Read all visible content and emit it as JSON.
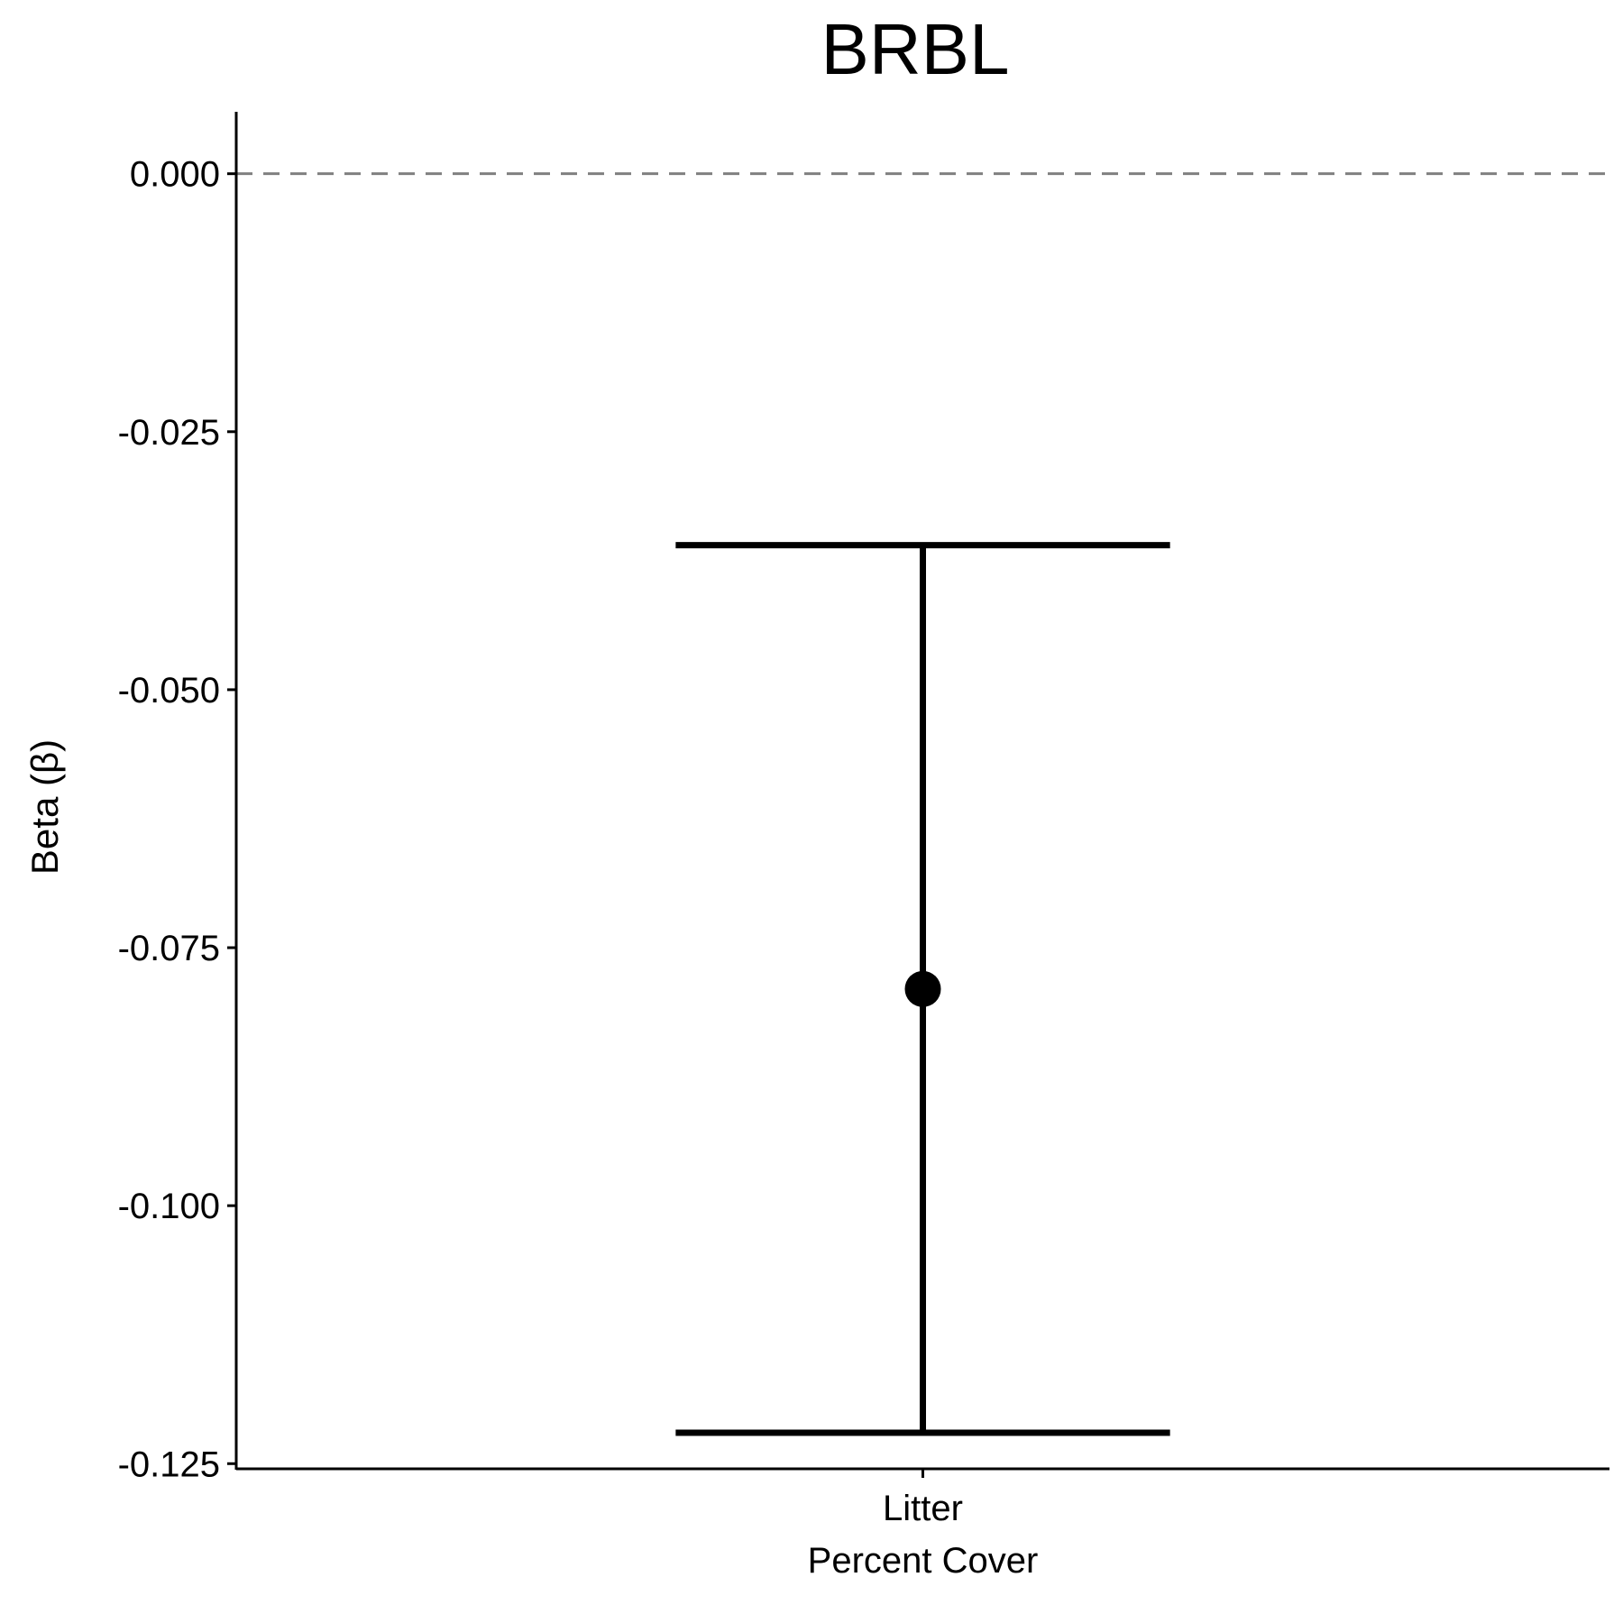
{
  "chart_data": {
    "type": "scatter",
    "title": "BRBL",
    "xlabel": "",
    "ylabel": "Beta (β)",
    "categories": [
      "Litter\nPercent Cover"
    ],
    "points": [
      {
        "category": "Litter\nPercent Cover",
        "estimate": -0.079,
        "lower": -0.122,
        "upper": -0.036
      }
    ],
    "yticks": [
      0.0,
      -0.025,
      -0.05,
      -0.075,
      -0.1,
      -0.125
    ],
    "ytick_labels": [
      "0.000",
      "-0.025",
      "-0.050",
      "-0.075",
      "-0.100",
      "-0.125"
    ],
    "ylim": [
      -0.1255,
      0.006
    ],
    "reference_line": {
      "y": 0.0,
      "style": "dashed",
      "color": "#808080"
    },
    "grid": false,
    "legend": "none",
    "colors": {
      "point": "#000000",
      "errorbar": "#000000",
      "axis": "#000000"
    }
  }
}
